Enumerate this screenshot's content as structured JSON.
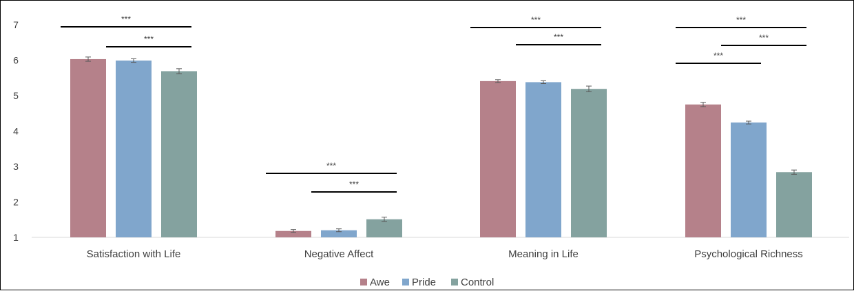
{
  "chart_data": {
    "type": "bar",
    "categories": [
      "Satisfaction with Life",
      "Negative Affect",
      "Meaning in Life",
      "Psychological Richness"
    ],
    "series": [
      {
        "name": "Awe",
        "color": "#b5818a",
        "values": [
          6.03,
          1.18,
          5.41,
          4.75
        ],
        "errors": [
          0.06,
          0.04,
          0.04,
          0.06
        ]
      },
      {
        "name": "Pride",
        "color": "#80a6cc",
        "values": [
          5.99,
          1.2,
          5.38,
          4.24
        ],
        "errors": [
          0.05,
          0.04,
          0.04,
          0.04
        ]
      },
      {
        "name": "Control",
        "color": "#84a29f",
        "values": [
          5.69,
          1.51,
          5.19,
          2.84
        ],
        "errors": [
          0.07,
          0.06,
          0.08,
          0.06
        ]
      }
    ],
    "ylim": [
      1,
      7
    ],
    "yticks": [
      "1",
      "2",
      "3",
      "4",
      "5",
      "6",
      "7"
    ],
    "grid": false,
    "legend_position": "bottom",
    "significance": [
      {
        "category": 0,
        "from": "Awe",
        "to": "Control",
        "label": "***"
      },
      {
        "category": 0,
        "from": "Pride",
        "to": "Control",
        "label": "***"
      },
      {
        "category": 1,
        "from": "Awe",
        "to": "Control",
        "label": "***"
      },
      {
        "category": 1,
        "from": "Pride",
        "to": "Control",
        "label": "***"
      },
      {
        "category": 2,
        "from": "Awe",
        "to": "Control",
        "label": "***"
      },
      {
        "category": 2,
        "from": "Pride",
        "to": "Control",
        "label": "***"
      },
      {
        "category": 3,
        "from": "Awe",
        "to": "Control",
        "label": "***"
      },
      {
        "category": 3,
        "from": "Awe",
        "to": "Pride",
        "label": "***"
      },
      {
        "category": 3,
        "from": "Pride",
        "to": "Control",
        "label": "***"
      }
    ]
  }
}
